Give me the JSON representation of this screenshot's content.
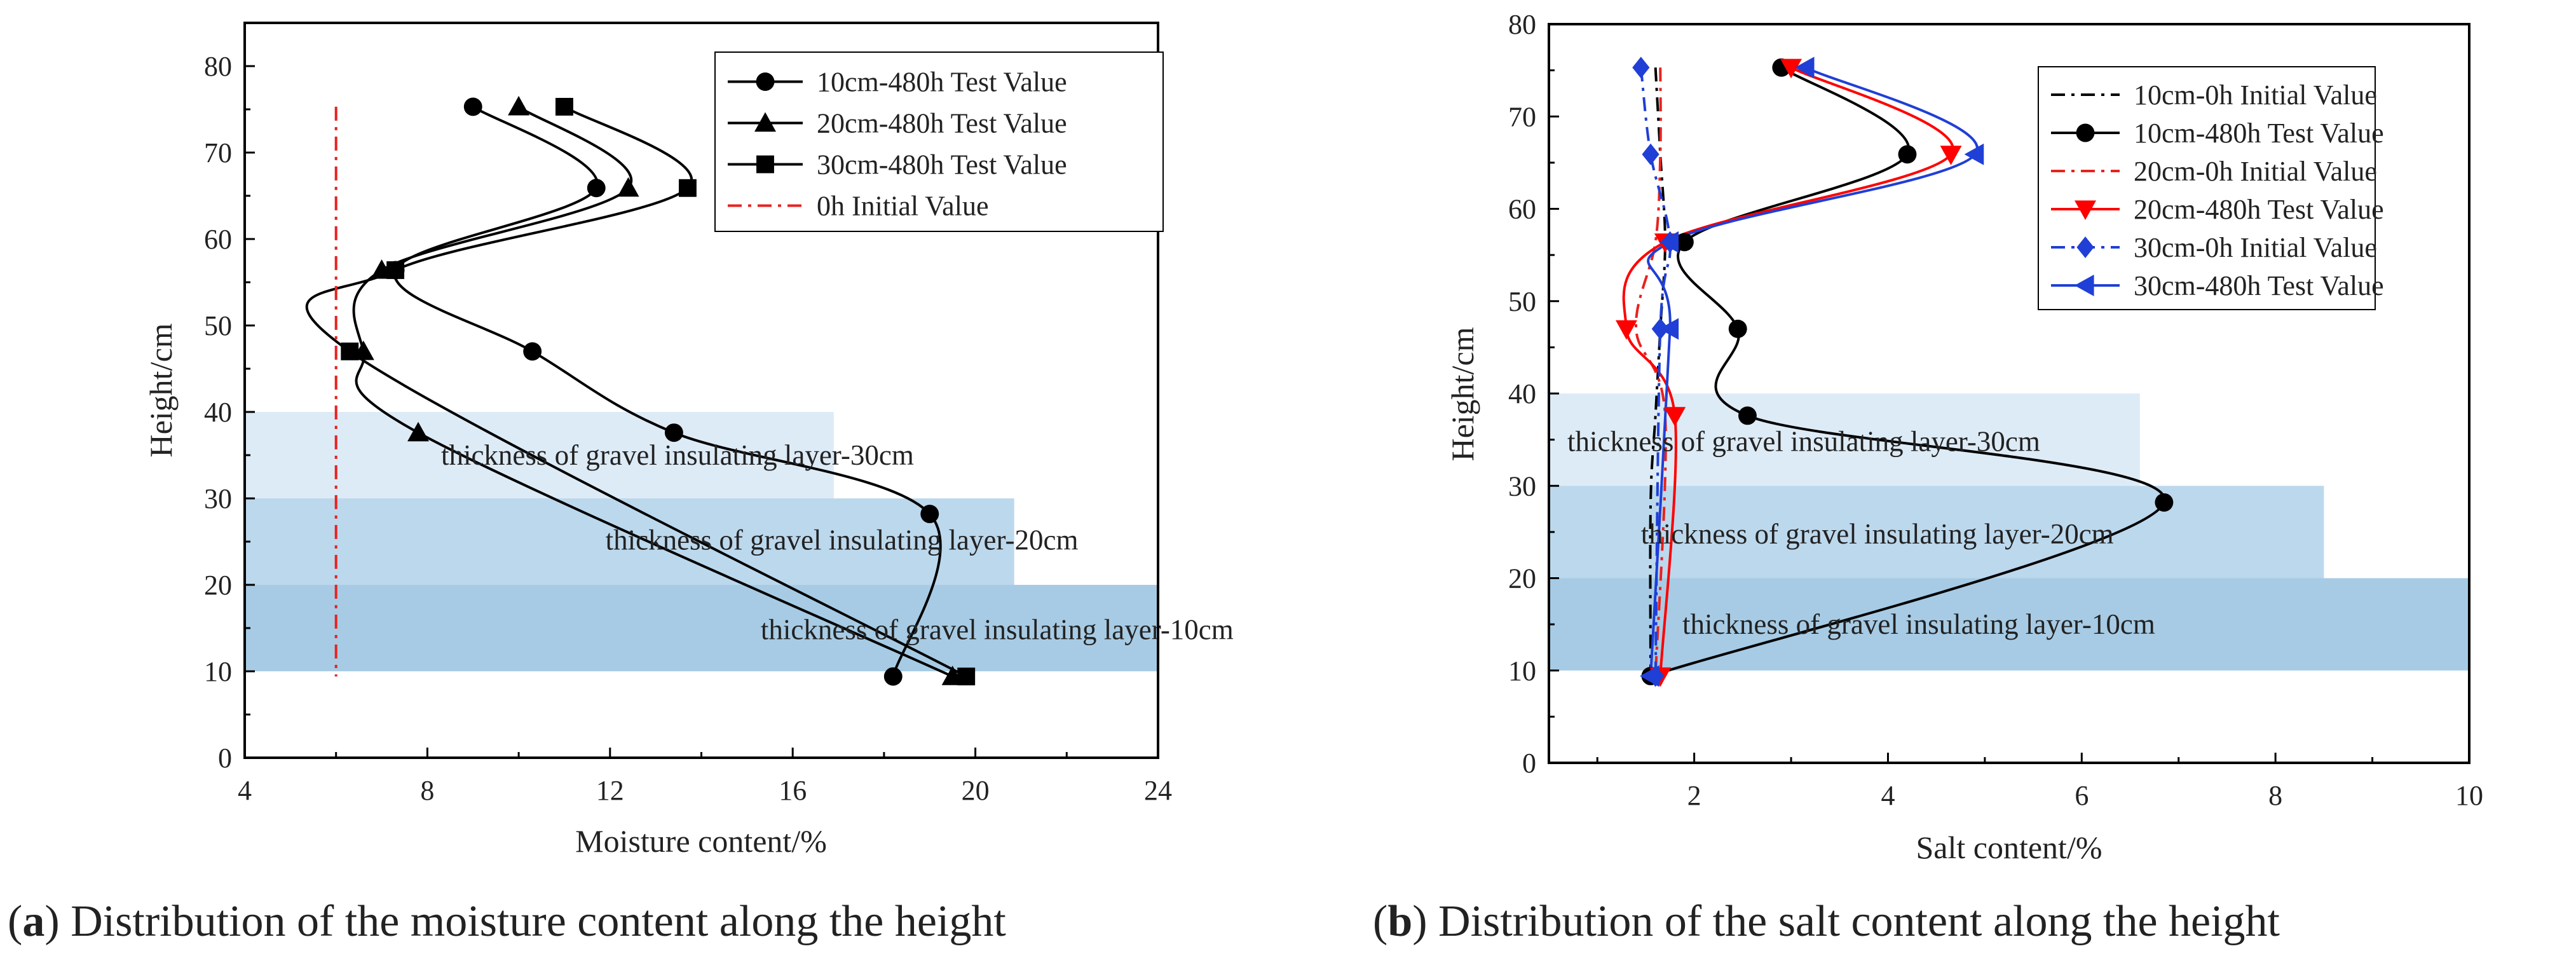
{
  "chart_data": [
    {
      "type": "line",
      "panel": "a",
      "caption_letter": "a",
      "caption_text": ") Distribution of the moisture content along the height",
      "xlabel": "Moisture content/%",
      "ylabel": "Height/cm",
      "xlim": [
        4,
        24
      ],
      "ylim": [
        0,
        85
      ],
      "xticks": [
        4,
        8,
        12,
        16,
        20,
        24
      ],
      "yticks": [
        0,
        10,
        20,
        30,
        40,
        50,
        60,
        70,
        80
      ],
      "legend_position": "top-right",
      "bands": [
        {
          "label": "thickness of gravel insulating layer-30cm",
          "x_end": 16.9,
          "y_from": 30,
          "y_to": 40
        },
        {
          "label": "thickness of gravel insulating layer-20cm",
          "x_end": 20.85,
          "y_from": 20,
          "y_to": 30
        },
        {
          "label": "thickness of gravel insulating layer-10cm",
          "x_end": 24,
          "y_from": 10,
          "y_to": 20
        }
      ],
      "series": [
        {
          "name": "10cm-480h Test Value",
          "marker": "circle",
          "color": "#000000",
          "dash": "solid",
          "points": [
            [
              9.0,
              75.3
            ],
            [
              11.7,
              65.9
            ],
            [
              7.3,
              56.4
            ],
            [
              10.3,
              47.0
            ],
            [
              13.4,
              37.6
            ],
            [
              19.0,
              28.2
            ],
            [
              18.2,
              9.4
            ]
          ]
        },
        {
          "name": "20cm-480h Test Value",
          "marker": "triangle",
          "color": "#000000",
          "dash": "solid",
          "points": [
            [
              10.0,
              75.3
            ],
            [
              12.4,
              65.9
            ],
            [
              7.0,
              56.4
            ],
            [
              6.6,
              47.0
            ],
            [
              7.8,
              37.6
            ],
            [
              19.5,
              9.4
            ]
          ]
        },
        {
          "name": "30cm-480h Test Value",
          "marker": "square",
          "color": "#000000",
          "dash": "solid",
          "points": [
            [
              11.0,
              75.3
            ],
            [
              13.7,
              65.9
            ],
            [
              7.3,
              56.4
            ],
            [
              6.3,
              47.0
            ],
            [
              19.8,
              9.4
            ]
          ]
        },
        {
          "name": "0h Initial Value",
          "marker": "none",
          "color": "#e8221e",
          "dash": "dashdot",
          "points": [
            [
              6.0,
              75.3
            ],
            [
              6.0,
              9.4
            ]
          ]
        }
      ]
    },
    {
      "type": "line",
      "panel": "b",
      "caption_letter": "b",
      "caption_text": ") Distribution of the salt content along the height",
      "xlabel": "Salt content/%",
      "ylabel": "Height/cm",
      "xlim": [
        0.5,
        10
      ],
      "ylim": [
        0,
        80
      ],
      "xticks": [
        2,
        4,
        6,
        8,
        10
      ],
      "yticks": [
        0,
        10,
        20,
        30,
        40,
        50,
        60,
        70,
        80
      ],
      "legend_position": "top-right",
      "bands": [
        {
          "label": "thickness of gravel insulating layer-30cm",
          "x_end": 6.6,
          "y_from": 30,
          "y_to": 40
        },
        {
          "label": "thickness of gravel insulating layer-20cm",
          "x_end": 8.5,
          "y_from": 20,
          "y_to": 30
        },
        {
          "label": "thickness of gravel insulating layer-10cm",
          "x_end": 10,
          "y_from": 10,
          "y_to": 20
        }
      ],
      "series": [
        {
          "name": "10cm-0h Initial Value",
          "marker": "none",
          "color": "#000000",
          "dash": "dashdot",
          "points": [
            [
              1.6,
              75.3
            ],
            [
              1.65,
              65.9
            ],
            [
              1.7,
              56.4
            ],
            [
              1.65,
              47.0
            ],
            [
              1.6,
              37.6
            ],
            [
              1.55,
              28.2
            ],
            [
              1.55,
              9.4
            ]
          ]
        },
        {
          "name": "10cm-480h Test Value",
          "marker": "circle",
          "color": "#000000",
          "dash": "solid",
          "points": [
            [
              2.9,
              75.3
            ],
            [
              4.2,
              65.9
            ],
            [
              1.9,
              56.4
            ],
            [
              2.45,
              47.0
            ],
            [
              2.55,
              37.6
            ],
            [
              6.85,
              28.2
            ],
            [
              1.55,
              9.4
            ]
          ]
        },
        {
          "name": "20cm-0h Initial Value",
          "marker": "none",
          "color": "#e8221e",
          "dash": "dashdot",
          "points": [
            [
              1.65,
              75.3
            ],
            [
              1.65,
              65.9
            ],
            [
              1.6,
              56.4
            ],
            [
              1.4,
              47.0
            ],
            [
              1.7,
              37.6
            ],
            [
              1.6,
              9.4
            ]
          ]
        },
        {
          "name": "20cm-480h Test Value",
          "marker": "triangle-down",
          "color": "#ff0000",
          "dash": "solid",
          "points": [
            [
              3.0,
              75.3
            ],
            [
              4.65,
              65.9
            ],
            [
              1.7,
              56.4
            ],
            [
              1.3,
              47.0
            ],
            [
              1.8,
              37.6
            ],
            [
              1.65,
              9.4
            ]
          ]
        },
        {
          "name": "30cm-0h Initial Value",
          "marker": "diamond",
          "color": "#1f3fd6",
          "dash": "dashdot",
          "points": [
            [
              1.45,
              75.3
            ],
            [
              1.55,
              65.9
            ],
            [
              1.75,
              56.4
            ],
            [
              1.65,
              47.0
            ],
            [
              1.6,
              9.4
            ]
          ]
        },
        {
          "name": "30cm-480h Test Value",
          "marker": "triangle-left",
          "color": "#1f3fd6",
          "dash": "solid",
          "points": [
            [
              3.15,
              75.3
            ],
            [
              4.9,
              65.9
            ],
            [
              1.75,
              56.4
            ],
            [
              1.75,
              47.0
            ],
            [
              1.55,
              9.4
            ]
          ]
        }
      ]
    }
  ]
}
